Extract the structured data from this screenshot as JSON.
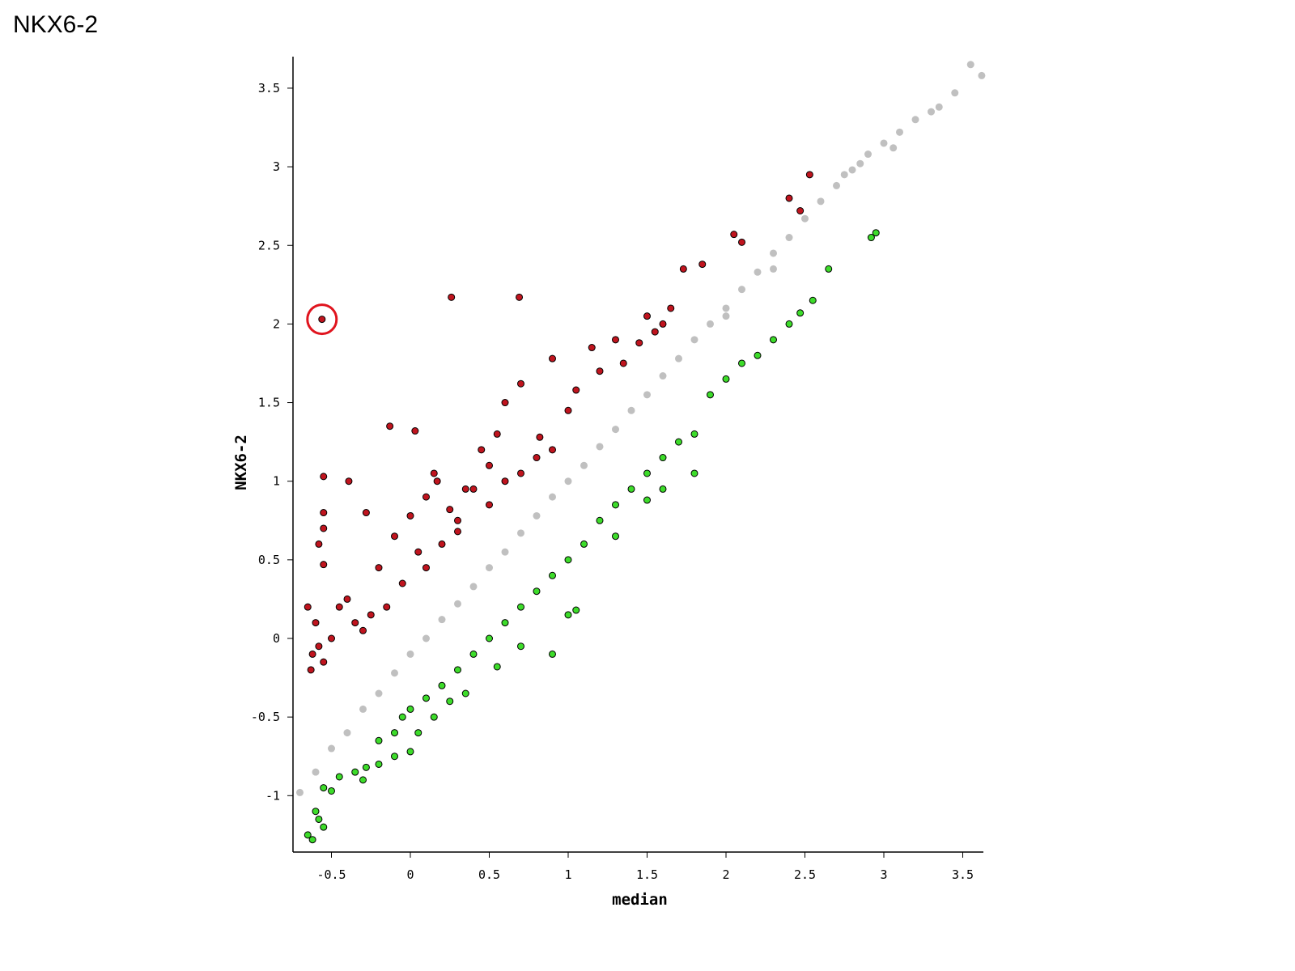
{
  "page": {
    "title": "NKX6-2"
  },
  "chart_data": {
    "type": "scatter",
    "title": "",
    "xlabel": "median",
    "ylabel": "NKX6-2",
    "xlim": [
      -0.75,
      3.6
    ],
    "ylim": [
      -1.35,
      3.7
    ],
    "xticks": [
      "-0.5",
      "0",
      "0.5",
      "1",
      "1.5",
      "2",
      "2.5",
      "3",
      "3.5"
    ],
    "yticks": [
      "-1",
      "-0.5",
      "0",
      "0.5",
      "1",
      "1.5",
      "2",
      "2.5",
      "3",
      "3.5"
    ],
    "grid": false,
    "legend": "none",
    "colors": {
      "background": "#c0c0c0",
      "up": "#c0141e",
      "down": "#3ddc2a",
      "highlight_ring": "#e0141e"
    },
    "series": [
      {
        "role": "background",
        "points": [
          [
            -0.7,
            -0.98
          ],
          [
            -0.6,
            -0.85
          ],
          [
            -0.5,
            -0.7
          ],
          [
            -0.4,
            -0.6
          ],
          [
            -0.3,
            -0.45
          ],
          [
            -0.2,
            -0.35
          ],
          [
            -0.1,
            -0.22
          ],
          [
            0.0,
            -0.1
          ],
          [
            0.1,
            0.0
          ],
          [
            0.2,
            0.12
          ],
          [
            0.3,
            0.22
          ],
          [
            0.4,
            0.33
          ],
          [
            0.5,
            0.45
          ],
          [
            0.6,
            0.55
          ],
          [
            0.7,
            0.67
          ],
          [
            0.8,
            0.78
          ],
          [
            0.9,
            0.9
          ],
          [
            1.0,
            1.0
          ],
          [
            1.1,
            1.1
          ],
          [
            1.2,
            1.22
          ],
          [
            1.3,
            1.33
          ],
          [
            1.4,
            1.45
          ],
          [
            1.5,
            1.55
          ],
          [
            1.6,
            1.67
          ],
          [
            1.7,
            1.78
          ],
          [
            1.8,
            1.9
          ],
          [
            1.9,
            2.0
          ],
          [
            2.0,
            2.1
          ],
          [
            2.1,
            2.22
          ],
          [
            2.2,
            2.33
          ],
          [
            2.3,
            2.45
          ],
          [
            2.4,
            2.55
          ],
          [
            2.5,
            2.67
          ],
          [
            2.6,
            2.78
          ],
          [
            2.7,
            2.88
          ],
          [
            2.8,
            2.98
          ],
          [
            2.9,
            3.08
          ],
          [
            3.0,
            3.15
          ],
          [
            3.1,
            3.22
          ],
          [
            3.2,
            3.3
          ],
          [
            3.3,
            3.35
          ],
          [
            3.35,
            3.38
          ],
          [
            3.45,
            3.47
          ],
          [
            3.55,
            3.65
          ],
          [
            3.62,
            3.58
          ],
          [
            3.06,
            3.12
          ],
          [
            2.85,
            3.02
          ],
          [
            2.75,
            2.95
          ],
          [
            2.3,
            2.35
          ],
          [
            2.0,
            2.05
          ]
        ]
      },
      {
        "role": "up",
        "points": [
          [
            -0.56,
            2.03
          ],
          [
            0.26,
            2.17
          ],
          [
            0.69,
            2.17
          ],
          [
            -0.13,
            1.35
          ],
          [
            0.03,
            1.32
          ],
          [
            -0.55,
            1.03
          ],
          [
            -0.39,
            1.0
          ],
          [
            -0.55,
            0.8
          ],
          [
            -0.58,
            0.6
          ],
          [
            -0.55,
            0.7
          ],
          [
            -0.55,
            0.47
          ],
          [
            -0.65,
            0.2
          ],
          [
            -0.6,
            0.1
          ],
          [
            -0.62,
            -0.1
          ],
          [
            -0.58,
            -0.05
          ],
          [
            -0.5,
            0.0
          ],
          [
            -0.45,
            0.2
          ],
          [
            -0.4,
            0.25
          ],
          [
            -0.35,
            0.1
          ],
          [
            -0.28,
            0.8
          ],
          [
            -0.2,
            0.45
          ],
          [
            -0.1,
            0.65
          ],
          [
            0.0,
            0.78
          ],
          [
            0.1,
            0.9
          ],
          [
            0.17,
            1.0
          ],
          [
            0.3,
            0.75
          ],
          [
            0.4,
            0.95
          ],
          [
            0.5,
            1.1
          ],
          [
            0.6,
            1.5
          ],
          [
            0.7,
            1.62
          ],
          [
            0.9,
            1.78
          ],
          [
            1.05,
            1.58
          ],
          [
            1.15,
            1.85
          ],
          [
            1.3,
            1.9
          ],
          [
            1.5,
            2.05
          ],
          [
            1.6,
            2.0
          ],
          [
            1.73,
            2.35
          ],
          [
            1.85,
            2.38
          ],
          [
            2.05,
            2.57
          ],
          [
            2.1,
            2.52
          ],
          [
            2.4,
            2.8
          ],
          [
            2.47,
            2.72
          ],
          [
            2.53,
            2.95
          ],
          [
            0.8,
            1.15
          ],
          [
            0.9,
            1.2
          ],
          [
            1.0,
            1.45
          ],
          [
            0.5,
            0.85
          ],
          [
            0.6,
            1.0
          ],
          [
            0.7,
            1.05
          ],
          [
            0.3,
            0.68
          ],
          [
            0.2,
            0.6
          ],
          [
            0.1,
            0.45
          ],
          [
            -0.05,
            0.35
          ],
          [
            -0.15,
            0.2
          ],
          [
            -0.25,
            0.15
          ],
          [
            -0.3,
            0.05
          ],
          [
            -0.63,
            -0.2
          ],
          [
            -0.55,
            -0.15
          ],
          [
            0.35,
            0.95
          ],
          [
            0.45,
            1.2
          ],
          [
            0.55,
            1.3
          ],
          [
            0.82,
            1.28
          ],
          [
            1.2,
            1.7
          ],
          [
            1.35,
            1.75
          ],
          [
            1.45,
            1.88
          ],
          [
            1.55,
            1.95
          ],
          [
            1.65,
            2.1
          ],
          [
            0.15,
            1.05
          ],
          [
            0.25,
            0.82
          ],
          [
            0.05,
            0.55
          ]
        ]
      },
      {
        "role": "down",
        "points": [
          [
            -0.6,
            -1.1
          ],
          [
            -0.58,
            -1.15
          ],
          [
            -0.62,
            -1.28
          ],
          [
            -0.55,
            -1.2
          ],
          [
            -0.65,
            -1.25
          ],
          [
            -0.55,
            -0.95
          ],
          [
            -0.5,
            -0.97
          ],
          [
            -0.45,
            -0.88
          ],
          [
            -0.35,
            -0.85
          ],
          [
            -0.28,
            -0.82
          ],
          [
            -0.2,
            -0.8
          ],
          [
            -0.1,
            -0.75
          ],
          [
            0.0,
            -0.72
          ],
          [
            -0.1,
            -0.6
          ],
          [
            -0.05,
            -0.5
          ],
          [
            0.0,
            -0.45
          ],
          [
            0.1,
            -0.38
          ],
          [
            0.2,
            -0.3
          ],
          [
            0.3,
            -0.2
          ],
          [
            0.35,
            -0.35
          ],
          [
            0.4,
            -0.1
          ],
          [
            0.5,
            0.0
          ],
          [
            0.6,
            0.1
          ],
          [
            0.7,
            0.2
          ],
          [
            0.8,
            0.3
          ],
          [
            0.9,
            0.4
          ],
          [
            1.0,
            0.5
          ],
          [
            1.1,
            0.6
          ],
          [
            1.2,
            0.75
          ],
          [
            1.3,
            0.85
          ],
          [
            1.4,
            0.95
          ],
          [
            1.5,
            1.05
          ],
          [
            1.6,
            1.15
          ],
          [
            1.7,
            1.25
          ],
          [
            1.8,
            1.3
          ],
          [
            1.9,
            1.55
          ],
          [
            2.0,
            1.65
          ],
          [
            2.1,
            1.75
          ],
          [
            2.2,
            1.8
          ],
          [
            2.3,
            1.9
          ],
          [
            2.4,
            2.0
          ],
          [
            2.47,
            2.07
          ],
          [
            2.55,
            2.15
          ],
          [
            2.65,
            2.35
          ],
          [
            2.92,
            2.55
          ],
          [
            2.95,
            2.58
          ],
          [
            0.55,
            -0.18
          ],
          [
            0.7,
            -0.05
          ],
          [
            0.9,
            -0.1
          ],
          [
            1.0,
            0.15
          ],
          [
            1.05,
            0.18
          ],
          [
            1.3,
            0.65
          ],
          [
            1.5,
            0.88
          ],
          [
            1.8,
            1.05
          ],
          [
            1.6,
            0.95
          ],
          [
            0.25,
            -0.4
          ],
          [
            0.15,
            -0.5
          ],
          [
            0.05,
            -0.6
          ],
          [
            -0.2,
            -0.65
          ],
          [
            -0.3,
            -0.9
          ]
        ]
      }
    ]
  }
}
